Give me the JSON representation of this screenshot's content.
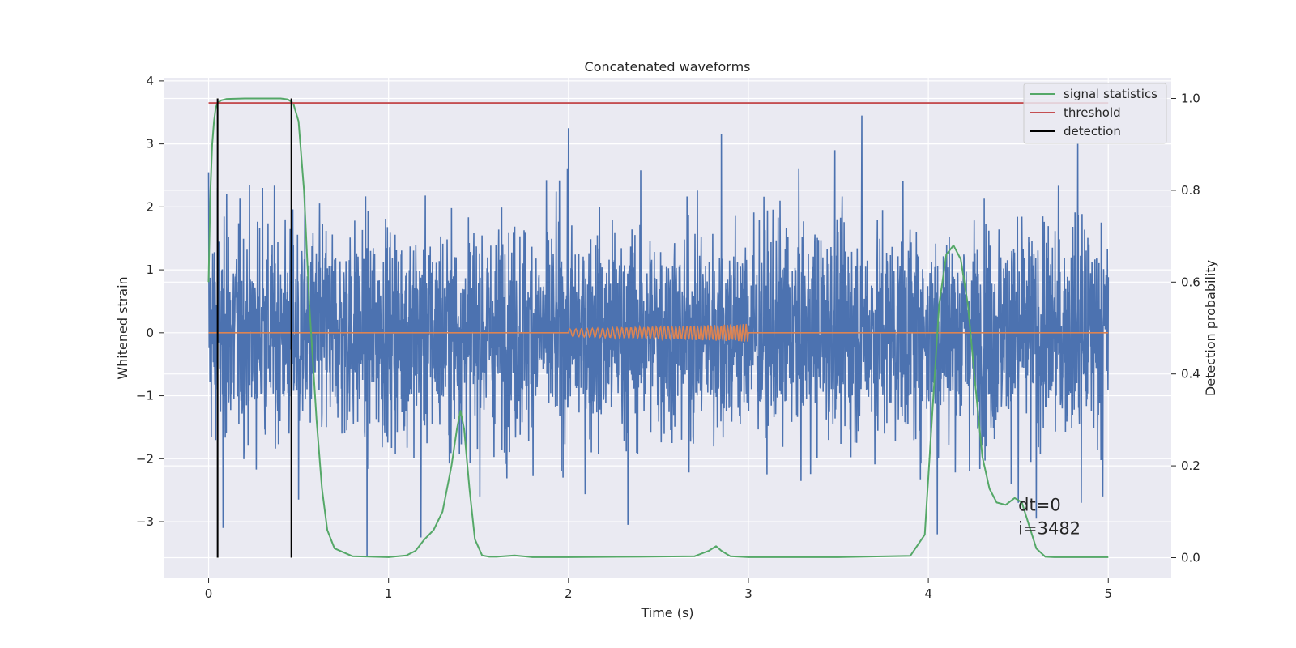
{
  "chart_data": {
    "type": "line",
    "title": "Concatenated waveforms",
    "xlabel": "Time (s)",
    "ylabel": "Whitened strain",
    "y2label": "Detection probability",
    "xlim": [
      -0.25,
      5.35
    ],
    "ylim": [
      -3.9,
      4.05
    ],
    "y2lim": [
      -0.045,
      1.045
    ],
    "xticks": [
      0,
      1,
      2,
      3,
      4,
      5
    ],
    "xtick_labels": [
      "0",
      "1",
      "2",
      "3",
      "4",
      "5"
    ],
    "yticks": [
      -3,
      -2,
      -1,
      0,
      1,
      2,
      3,
      4
    ],
    "ytick_labels": [
      "−3",
      "−2",
      "−1",
      "0",
      "1",
      "2",
      "3",
      "4"
    ],
    "y2ticks": [
      0.0,
      0.2,
      0.4,
      0.6,
      0.8,
      1.0
    ],
    "y2tick_labels": [
      "0.0",
      "0.2",
      "0.4",
      "0.6",
      "0.8",
      "1.0"
    ],
    "grid": true,
    "legend_position": "top-right",
    "noise": {
      "color": "#4c72b0",
      "x_start": 0,
      "x_end": 5,
      "sigma": 0.85,
      "peak_values": [
        [
          0.0,
          2.55
        ],
        [
          0.05,
          2.3
        ],
        [
          0.08,
          -3.1
        ],
        [
          0.1,
          2.2
        ],
        [
          0.3,
          2.3
        ],
        [
          0.5,
          -2.65
        ],
        [
          0.88,
          -3.55
        ],
        [
          1.18,
          -3.25
        ],
        [
          1.95,
          2.42
        ],
        [
          2.0,
          3.25
        ],
        [
          2.85,
          3.15
        ],
        [
          2.33,
          -3.05
        ],
        [
          3.48,
          2.9
        ],
        [
          3.63,
          3.45
        ],
        [
          4.05,
          -3.2
        ],
        [
          4.5,
          -2.7
        ],
        [
          4.6,
          -2.95
        ],
        [
          4.83,
          3.0
        ],
        [
          4.85,
          -2.7
        ],
        [
          4.96,
          1.75
        ],
        [
          4.97,
          -2.6
        ]
      ]
    },
    "injection": {
      "color": "#dd8452",
      "x_start": 2.0,
      "x_end": 3.0,
      "amp_start": 0.06,
      "amp_end": 0.14,
      "f_start": 30,
      "f_end": 60
    },
    "series": [
      {
        "name": "signal statistics",
        "color": "#55a868",
        "axis": "right",
        "x": [
          0.0,
          0.01,
          0.02,
          0.03,
          0.04,
          0.05,
          0.07,
          0.1,
          0.2,
          0.3,
          0.4,
          0.44,
          0.47,
          0.5,
          0.53,
          0.56,
          0.6,
          0.63,
          0.66,
          0.7,
          0.8,
          1.0,
          1.1,
          1.15,
          1.2,
          1.25,
          1.3,
          1.35,
          1.38,
          1.4,
          1.42,
          1.45,
          1.48,
          1.52,
          1.56,
          1.6,
          1.7,
          1.8,
          2.0,
          2.4,
          2.7,
          2.78,
          2.82,
          2.85,
          2.9,
          3.0,
          3.5,
          3.9,
          3.98,
          4.02,
          4.06,
          4.1,
          4.14,
          4.18,
          4.22,
          4.26,
          4.3,
          4.34,
          4.38,
          4.43,
          4.48,
          4.52,
          4.56,
          4.6,
          4.65,
          4.7,
          4.8,
          5.0
        ],
        "y": [
          0.6,
          0.8,
          0.9,
          0.95,
          0.98,
          0.99,
          0.996,
          0.999,
          1.0,
          1.0,
          1.0,
          0.998,
          0.99,
          0.95,
          0.8,
          0.55,
          0.3,
          0.15,
          0.06,
          0.02,
          0.003,
          0.001,
          0.005,
          0.015,
          0.04,
          0.06,
          0.1,
          0.2,
          0.28,
          0.32,
          0.28,
          0.15,
          0.04,
          0.005,
          0.002,
          0.002,
          0.005,
          0.001,
          0.001,
          0.002,
          0.003,
          0.015,
          0.025,
          0.015,
          0.003,
          0.001,
          0.001,
          0.004,
          0.05,
          0.3,
          0.55,
          0.66,
          0.68,
          0.65,
          0.55,
          0.38,
          0.22,
          0.15,
          0.12,
          0.115,
          0.13,
          0.12,
          0.07,
          0.02,
          0.002,
          0.001,
          0.001,
          0.001
        ]
      },
      {
        "name": "threshold",
        "color": "#c44e52",
        "axis": "right",
        "x": [
          0.0,
          5.0
        ],
        "y": [
          0.99,
          0.99
        ]
      },
      {
        "name": "detection",
        "color": "#000000",
        "axis": "right",
        "type": "vlines",
        "x": [
          0.05,
          0.46
        ],
        "ymin": 0.0,
        "ymax": 1.0
      }
    ],
    "annotations": [
      "dt=0",
      "i=3482"
    ],
    "annotation_position": [
      4.5,
      -2.75
    ]
  }
}
